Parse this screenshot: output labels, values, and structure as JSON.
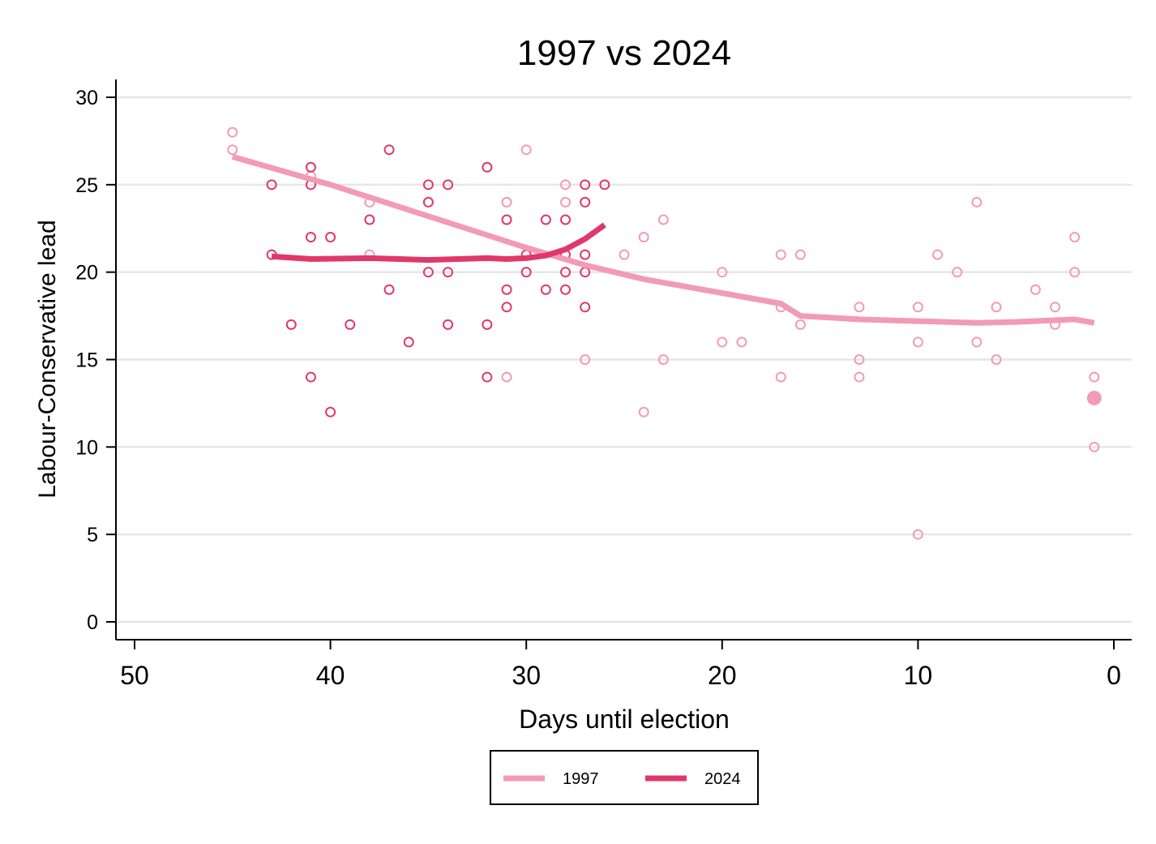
{
  "chart_data": {
    "type": "scatter",
    "title": "1997 vs 2024",
    "xlabel": "Days until election",
    "ylabel": "Labour-Conservative lead",
    "xlim": [
      50,
      0
    ],
    "ylim": [
      0,
      30
    ],
    "x_ticks": [
      50,
      40,
      30,
      20,
      10,
      0
    ],
    "y_ticks": [
      0,
      5,
      10,
      15,
      20,
      25,
      30
    ],
    "grid": "horizontal",
    "legend_position": "bottom",
    "series": [
      {
        "name": "1997",
        "color": "#f29bb5",
        "points": [
          [
            45,
            28
          ],
          [
            45,
            27
          ],
          [
            41,
            25.5
          ],
          [
            38,
            24
          ],
          [
            38,
            21
          ],
          [
            31,
            24
          ],
          [
            31,
            14
          ],
          [
            30,
            27
          ],
          [
            28,
            25
          ],
          [
            28,
            24
          ],
          [
            27,
            15
          ],
          [
            25,
            21
          ],
          [
            24,
            22
          ],
          [
            24,
            12
          ],
          [
            23,
            23
          ],
          [
            23,
            15
          ],
          [
            20,
            20
          ],
          [
            20,
            16
          ],
          [
            19,
            16
          ],
          [
            17,
            21
          ],
          [
            17,
            18
          ],
          [
            17,
            14
          ],
          [
            16,
            21
          ],
          [
            16,
            17
          ],
          [
            13,
            18
          ],
          [
            13,
            15
          ],
          [
            13,
            14
          ],
          [
            10,
            18
          ],
          [
            10,
            16
          ],
          [
            10,
            5
          ],
          [
            9,
            21
          ],
          [
            8,
            20
          ],
          [
            7,
            24
          ],
          [
            7,
            16
          ],
          [
            6,
            18
          ],
          [
            6,
            15
          ],
          [
            4,
            19
          ],
          [
            3,
            18
          ],
          [
            3,
            17
          ],
          [
            2,
            22
          ],
          [
            2,
            20
          ],
          [
            1,
            14
          ],
          [
            1,
            10
          ]
        ],
        "highlight_point": [
          1,
          12.8
        ],
        "trend": [
          [
            45,
            26.6
          ],
          [
            40,
            25.0
          ],
          [
            35,
            23.2
          ],
          [
            30,
            21.4
          ],
          [
            27,
            20.4
          ],
          [
            24,
            19.6
          ],
          [
            20,
            18.8
          ],
          [
            17,
            18.2
          ],
          [
            16,
            17.5
          ],
          [
            13,
            17.3
          ],
          [
            10,
            17.2
          ],
          [
            7,
            17.1
          ],
          [
            5,
            17.15
          ],
          [
            2,
            17.3
          ],
          [
            1,
            17.1
          ]
        ]
      },
      {
        "name": "2024",
        "color": "#e0386a",
        "points": [
          [
            43,
            25
          ],
          [
            43,
            21
          ],
          [
            42,
            17
          ],
          [
            41,
            26
          ],
          [
            41,
            25
          ],
          [
            41,
            22
          ],
          [
            41,
            14
          ],
          [
            40,
            22
          ],
          [
            40,
            12
          ],
          [
            39,
            17
          ],
          [
            38,
            23
          ],
          [
            37,
            27
          ],
          [
            37,
            19
          ],
          [
            36,
            16
          ],
          [
            35,
            25
          ],
          [
            35,
            24
          ],
          [
            35,
            20
          ],
          [
            34,
            25
          ],
          [
            34,
            20
          ],
          [
            34,
            17
          ],
          [
            32,
            26
          ],
          [
            32,
            17
          ],
          [
            32,
            14
          ],
          [
            31,
            23
          ],
          [
            31,
            19
          ],
          [
            31,
            18
          ],
          [
            30,
            21
          ],
          [
            30,
            20
          ],
          [
            29,
            23
          ],
          [
            29,
            19
          ],
          [
            28,
            23
          ],
          [
            28,
            21
          ],
          [
            28,
            20
          ],
          [
            28,
            19
          ],
          [
            27,
            25
          ],
          [
            27,
            24
          ],
          [
            27,
            21
          ],
          [
            27,
            20
          ],
          [
            27,
            18
          ],
          [
            26,
            25
          ]
        ],
        "trend": [
          [
            43,
            20.9
          ],
          [
            41,
            20.75
          ],
          [
            38,
            20.8
          ],
          [
            35,
            20.7
          ],
          [
            32,
            20.8
          ],
          [
            31,
            20.75
          ],
          [
            30,
            20.8
          ],
          [
            29,
            20.95
          ],
          [
            28,
            21.3
          ],
          [
            27,
            21.9
          ],
          [
            26,
            22.7
          ]
        ]
      }
    ]
  }
}
